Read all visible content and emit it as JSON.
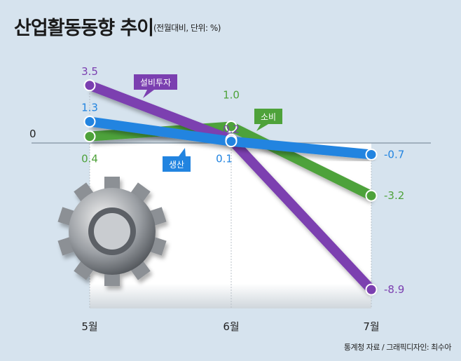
{
  "title": "산업활동동향 추이",
  "subtitle": "(전월대비, 단위: %)",
  "source": "통계청 자료 / 그래픽디자인: 최수아",
  "chart_data": {
    "type": "line",
    "title": "산업활동동향 추이",
    "subtitle": "(전월대비, 단위: %)",
    "categories": [
      "5월",
      "6월",
      "7월"
    ],
    "zero_label": "0",
    "ylim": [
      -10,
      4
    ],
    "series": [
      {
        "name": "설비투자",
        "color": "#7b3fb0",
        "values": [
          3.5,
          0.2,
          -8.9
        ],
        "labels": [
          "3.5",
          "0.2",
          "-8.9"
        ]
      },
      {
        "name": "생산",
        "color": "#2284e0",
        "values": [
          1.3,
          0.1,
          -0.7
        ],
        "labels": [
          "1.3",
          "0.1",
          "-0.7"
        ]
      },
      {
        "name": "소비",
        "color": "#4ea23a",
        "values": [
          0.4,
          1.0,
          -3.2
        ],
        "labels": [
          "0.4",
          "1.0",
          "-3.2"
        ]
      }
    ]
  }
}
